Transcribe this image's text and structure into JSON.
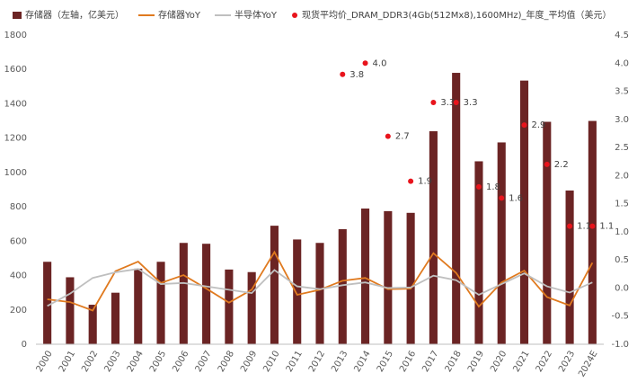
{
  "chart_data": {
    "type": "bar",
    "categories": [
      "2000",
      "2001",
      "2002",
      "2003",
      "2004",
      "2005",
      "2006",
      "2007",
      "2008",
      "2009",
      "2010",
      "2011",
      "2012",
      "2013",
      "2014",
      "2015",
      "2016",
      "2017",
      "2018",
      "2019",
      "2020",
      "2021",
      "2022",
      "2023",
      "2024E"
    ],
    "series": [
      {
        "name": "存储器（左轴，亿美元）",
        "type": "bar",
        "color": "#6b2424",
        "values": [
          480,
          390,
          230,
          300,
          440,
          480,
          590,
          585,
          435,
          420,
          690,
          610,
          590,
          670,
          790,
          775,
          765,
          1240,
          1580,
          1065,
          1175,
          1535,
          1295,
          895,
          1300
        ]
      },
      {
        "name": "存储器YoY",
        "type": "line",
        "axis": "y2",
        "color": "#e07a1f",
        "values": [
          -0.2,
          -0.25,
          -0.4,
          0.3,
          0.47,
          0.09,
          0.23,
          -0.01,
          -0.26,
          -0.03,
          0.64,
          -0.12,
          -0.03,
          0.13,
          0.18,
          -0.02,
          -0.01,
          0.62,
          0.27,
          -0.33,
          0.1,
          0.31,
          -0.16,
          -0.31,
          0.45
        ]
      },
      {
        "name": "半导体YoY",
        "type": "line",
        "axis": "y2",
        "color": "#bfbfbf",
        "values": [
          -0.32,
          -0.1,
          0.18,
          0.28,
          0.34,
          0.07,
          0.09,
          0.03,
          -0.03,
          -0.09,
          0.32,
          0.03,
          -0.02,
          0.05,
          0.1,
          0.0,
          0.01,
          0.22,
          0.14,
          -0.12,
          0.07,
          0.26,
          0.03,
          -0.08,
          0.1
        ]
      },
      {
        "name": "现货平均价_DRAM_DDR3(4Gb(512Mx8),1600MHz)_年度_平均值（美元）",
        "type": "scatter",
        "axis": "y2",
        "color": "#e8141c",
        "values": [
          null,
          null,
          null,
          null,
          null,
          null,
          null,
          null,
          null,
          null,
          null,
          null,
          null,
          3.8,
          4.0,
          2.7,
          1.9,
          3.3,
          3.3,
          1.8,
          1.6,
          2.9,
          2.2,
          1.1,
          1.1
        ],
        "value_labels": [
          null,
          null,
          null,
          null,
          null,
          null,
          null,
          null,
          null,
          null,
          null,
          null,
          null,
          "3.8",
          "4.0",
          "2.7",
          "1.9",
          "3.3",
          "3.3",
          "1.8",
          "1.6",
          "2.9",
          "2.2",
          "1.1",
          "1.1"
        ]
      }
    ],
    "ylim": [
      0,
      1800
    ],
    "yticks": [
      0,
      200,
      400,
      600,
      800,
      1000,
      1200,
      1400,
      1600,
      1800
    ],
    "y2lim": [
      -1.0,
      4.5
    ],
    "y2ticks": [
      {
        "value": -1.0,
        "label": "-1.0"
      },
      {
        "value": -0.5,
        "label": "-0.5"
      },
      {
        "value": 0,
        "label": "0.0"
      },
      {
        "value": 0.5,
        "label": "0.5"
      },
      {
        "value": 1.0,
        "label": "1.0"
      },
      {
        "value": 1.5,
        "label": "1.5"
      },
      {
        "value": 2.0,
        "label": "2.0"
      },
      {
        "value": 2.5,
        "label": "2.5"
      },
      {
        "value": 3.0,
        "label": "3.0"
      },
      {
        "value": 3.5,
        "label": "3.5"
      },
      {
        "value": 4.0,
        "label": "4.0"
      },
      {
        "value": 4.5,
        "label": "4.5"
      }
    ],
    "grid": false,
    "legend": "top"
  }
}
